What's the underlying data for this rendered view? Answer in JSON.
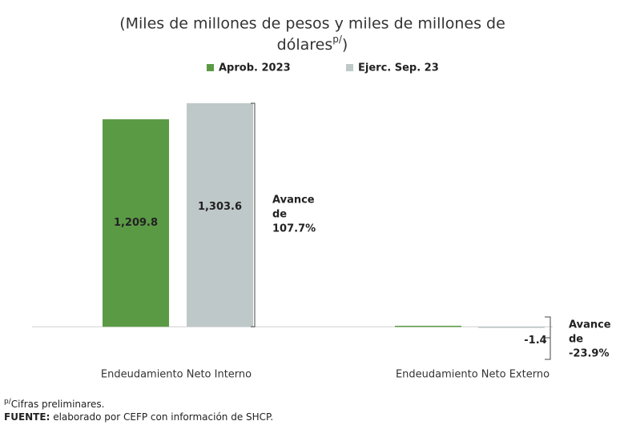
{
  "chart_data": {
    "type": "bar",
    "title": "(Miles de millones de pesos y miles de millones de dólares",
    "title_superscript": "p/",
    "title_suffix": ")",
    "categories": [
      "Endeudamiento Neto Interno",
      "Endeudamiento Neto Externo"
    ],
    "series": [
      {
        "name": "Aprob. 2023",
        "color": "#5b9a45",
        "values": [
          1209.8,
          5.8
        ],
        "value_labels": [
          "1,209.8",
          null
        ],
        "label_color": "#ffffff"
      },
      {
        "name": "Ejerc. Sep. 23",
        "color": "#bec8c9",
        "values": [
          1303.6,
          -1.4
        ],
        "value_labels": [
          "1,303.6",
          "-1.4"
        ],
        "label_color": "#222222"
      }
    ],
    "ylim": [
      -50,
      1350
    ],
    "annotations": [
      {
        "lines": [
          "Avance",
          "de",
          "107.7%"
        ]
      },
      {
        "lines": [
          "Avance",
          "de",
          "-23.9%"
        ]
      }
    ],
    "footnotes": [
      {
        "prefix": "p/",
        "text": "Cifras preliminares."
      },
      {
        "prefix": "FUENTE:",
        "text": " elaborado por CEFP con información de SHCP."
      }
    ]
  }
}
